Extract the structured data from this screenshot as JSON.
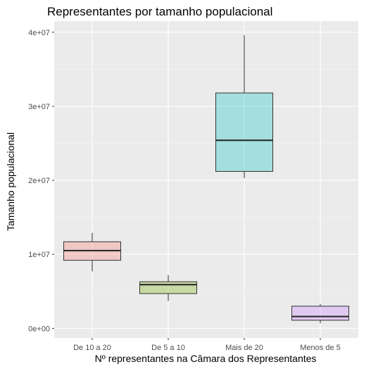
{
  "chart_data": {
    "type": "boxplot",
    "title": "Representantes por tamanho populacional",
    "xlabel": "Nº representantes na Câmara dos Representantes",
    "ylabel": "Tamanho populacional",
    "categories": [
      "De 10 a 20",
      "De 5 a 10",
      "Mais de 20",
      "Menos de 5"
    ],
    "y_ticks": [
      0,
      10000000,
      20000000,
      30000000,
      40000000
    ],
    "y_tick_labels": [
      "0e+00",
      "1e+07",
      "2e+07",
      "3e+07",
      "4e+07"
    ],
    "ylim": [
      -1300000,
      41500000
    ],
    "boxes": [
      {
        "category": "De 10 a 20",
        "min": 7700000,
        "q1": 9200000,
        "median": 10500000,
        "q3": 11700000,
        "max": 12900000,
        "color": "#f8766d"
      },
      {
        "category": "De 5 a 10",
        "min": 3700000,
        "q1": 4700000,
        "median": 5900000,
        "q3": 6300000,
        "max": 7200000,
        "color": "#7cae00"
      },
      {
        "category": "Mais de 20",
        "min": 20300000,
        "q1": 21200000,
        "median": 25400000,
        "q3": 31800000,
        "max": 39600000,
        "color": "#00bfc4"
      },
      {
        "category": "Menos de 5",
        "min": 700000,
        "q1": 1100000,
        "median": 1600000,
        "q3": 3000000,
        "max": 3300000,
        "color": "#c77cff"
      }
    ],
    "box_fill_alpha": 0.3,
    "grid": true,
    "legend": "none",
    "panel_background": "#ebebeb"
  }
}
